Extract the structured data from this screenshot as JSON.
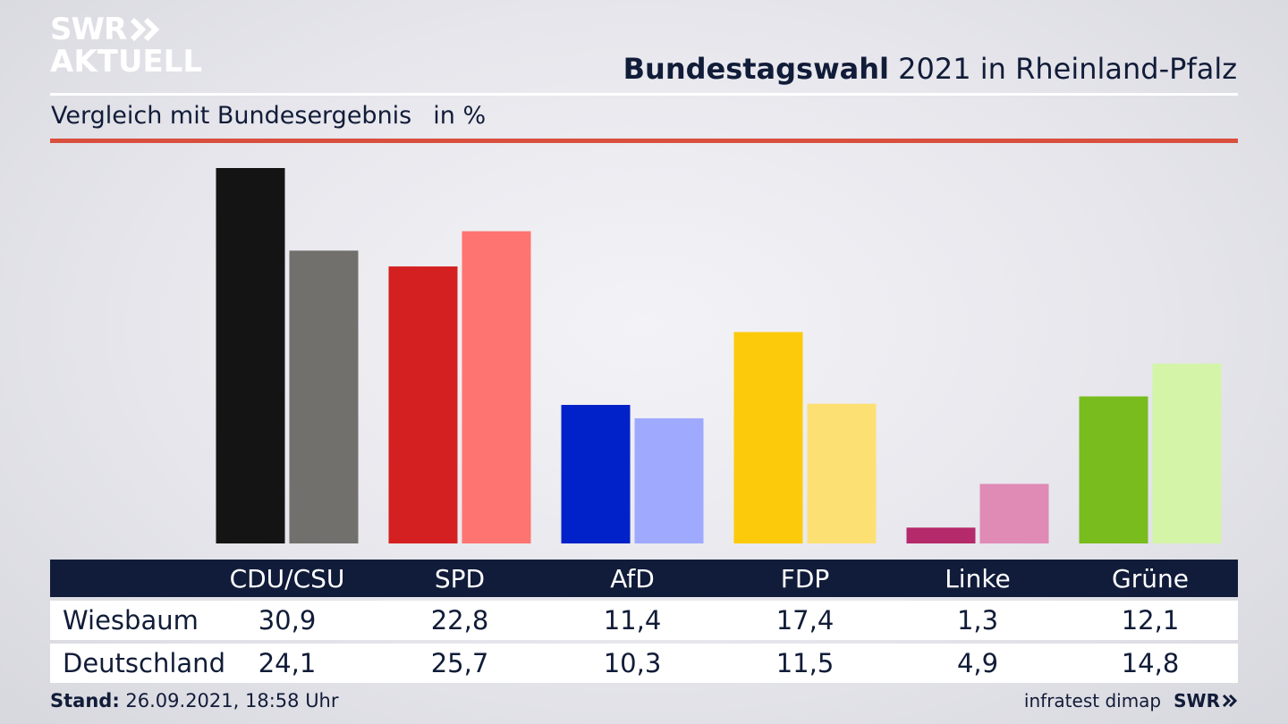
{
  "logo": {
    "line1": "SWR",
    "line2": "AKTUELL"
  },
  "header": {
    "title_bold": "Bundestagswahl",
    "title_rest": "2021 in Rheinland-Pfalz",
    "subtitle": "Vergleich mit Bundesergebnis",
    "unit": "in %"
  },
  "colors": {
    "background": "#e6e6ec",
    "title": "#111c38",
    "accent_rule": "#d94f3d",
    "table_header": "#111c3a"
  },
  "chart_data": {
    "type": "bar",
    "categories": [
      "CDU/CSU",
      "SPD",
      "AfD",
      "FDP",
      "Linke",
      "Grüne"
    ],
    "series": [
      {
        "name": "Wiesbaum",
        "values": [
          30.9,
          22.8,
          11.4,
          17.4,
          1.3,
          12.1
        ],
        "value_labels": [
          "30,9",
          "22,8",
          "11,4",
          "17,4",
          "1,3",
          "12,1"
        ],
        "colors": [
          "#141414",
          "#d42020",
          "#0022c8",
          "#fcca0a",
          "#b52a6a",
          "#78bc1e"
        ]
      },
      {
        "name": "Deutschland",
        "values": [
          24.1,
          25.7,
          10.3,
          11.5,
          4.9,
          14.8
        ],
        "value_labels": [
          "24,1",
          "25,7",
          "10,3",
          "11,5",
          "4,9",
          "14,8"
        ],
        "colors": [
          "#72706c",
          "#fe7470",
          "#9faafe",
          "#fde073",
          "#e08ab6",
          "#d4f4a8"
        ]
      }
    ],
    "ylim": [
      0,
      30.9
    ],
    "grid": false,
    "legend": "table-below"
  },
  "footer": {
    "stand_label": "Stand:",
    "stand_value": "26.09.2021, 18:58 Uhr",
    "source": "infratest dimap",
    "brand": "SWR"
  }
}
